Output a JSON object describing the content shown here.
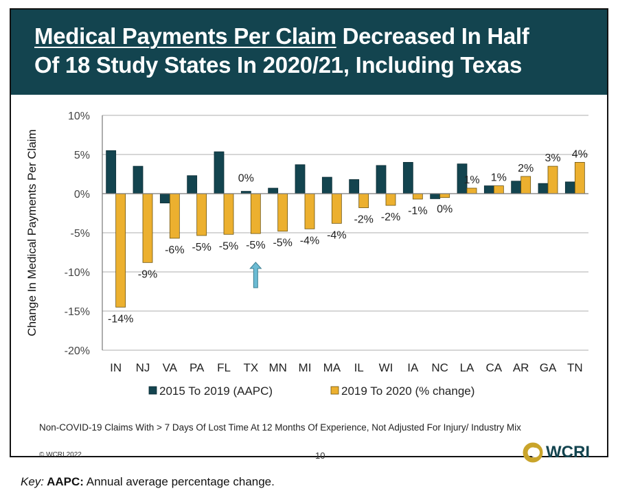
{
  "header": {
    "title_underlined": "Medical Payments Per Claim",
    "title_rest_line1": " Decreased In Half",
    "title_line2": "Of 18 Study States In 2020/21, Including Texas"
  },
  "chart_data": {
    "type": "bar",
    "ylabel": "Change In Medical Payments Per Claim",
    "ylim": [
      -20,
      10
    ],
    "yticks": [
      10,
      5,
      0,
      -5,
      -10,
      -15,
      -20
    ],
    "ytick_labels": [
      "10%",
      "5%",
      "0%",
      "-5%",
      "-10%",
      "-15%",
      "-20%"
    ],
    "grid": true,
    "legend_placement": "bottom",
    "categories": [
      "IN",
      "NJ",
      "VA",
      "PA",
      "FL",
      "TX",
      "MN",
      "MI",
      "MA",
      "IL",
      "WI",
      "IA",
      "NC",
      "LA",
      "CA",
      "AR",
      "GA",
      "TN"
    ],
    "series": [
      {
        "name": "2015 To 2019 (AAPC)",
        "color": "#13444f",
        "values": [
          5.5,
          3.5,
          -1.2,
          2.3,
          5.35,
          0.3,
          0.7,
          3.7,
          2.1,
          1.8,
          3.6,
          4.0,
          -0.65,
          3.8,
          1.0,
          1.6,
          1.3,
          1.5
        ],
        "data_labels": [
          "",
          "",
          "",
          "",
          "",
          "0%",
          "",
          "",
          "",
          "",
          "",
          "",
          "",
          "",
          "",
          "",
          "",
          ""
        ]
      },
      {
        "name": "2019 To 2020 (% change)",
        "color": "#ecb02f",
        "values": [
          -14.5,
          -8.8,
          -5.7,
          -5.35,
          -5.2,
          -5.1,
          -4.8,
          -4.5,
          -3.8,
          -1.8,
          -1.5,
          -0.7,
          -0.5,
          0.7,
          1.0,
          2.2,
          3.5,
          4.0
        ],
        "data_labels": [
          "-14%",
          "-9%",
          "-6%",
          "-5%",
          "-5%",
          "-5%",
          "-5%",
          "-4%",
          "-4%",
          "-2%",
          "-2%",
          "-1%",
          "0%",
          "1%",
          "1%",
          "2%",
          "3%",
          "4%"
        ]
      }
    ],
    "highlight": {
      "category": "TX",
      "marker": "up-arrow",
      "color": "#6bbbd3"
    }
  },
  "footer": {
    "note": "Non-COVID-19 Claims With > 7 Days Of Lost Time At 12 Months Of Experience, Not Adjusted For Injury/ Industry Mix",
    "copyright": "© WCRI 2022",
    "page_number": "10",
    "logo_text": "WCRI"
  },
  "key": {
    "italic": "Key:",
    "bold": " AAPC:",
    "text": " Annual average percentage change."
  }
}
